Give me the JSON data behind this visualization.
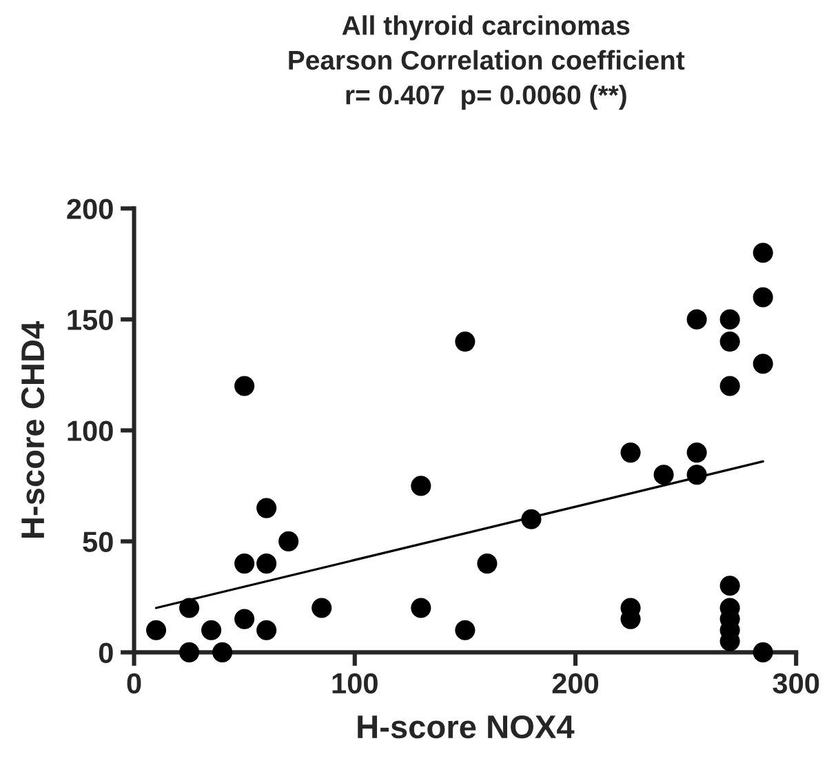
{
  "chart_data": {
    "type": "scatter",
    "title": "All thyroid carcinomas",
    "subtitle": "Pearson Correlation coefficient",
    "annotations": [
      "r= 0.407  p= 0.0060 (**)"
    ],
    "xlabel": "H-score NOX4",
    "ylabel": "H-score CHD4",
    "xlim": [
      0,
      300
    ],
    "xticks": [
      0,
      100,
      200,
      300
    ],
    "ylim": [
      0,
      200
    ],
    "yticks": [
      0,
      50,
      100,
      150,
      200
    ],
    "grid": false,
    "legend": false,
    "marker": "circle",
    "series": [
      {
        "color": "#000000",
        "x": [
          10,
          25,
          25,
          35,
          40,
          50,
          50,
          50,
          60,
          60,
          60,
          70,
          85,
          130,
          130,
          150,
          150,
          160,
          180,
          225,
          225,
          225,
          240,
          255,
          255,
          255,
          270,
          270,
          270,
          270,
          270,
          270,
          270,
          270,
          285,
          285,
          285,
          285
        ],
        "values": [
          10,
          20,
          0,
          10,
          0,
          120,
          40,
          15,
          65,
          40,
          10,
          50,
          20,
          75,
          20,
          140,
          10,
          40,
          60,
          90,
          20,
          15,
          80,
          150,
          90,
          80,
          150,
          140,
          120,
          30,
          20,
          15,
          10,
          5,
          180,
          160,
          130,
          0
        ]
      },
      {
        "type": "line",
        "color": "#000000",
        "x": [
          10,
          285
        ],
        "values": [
          20,
          86
        ],
        "marker": "none",
        "line_style": "solid"
      }
    ]
  }
}
